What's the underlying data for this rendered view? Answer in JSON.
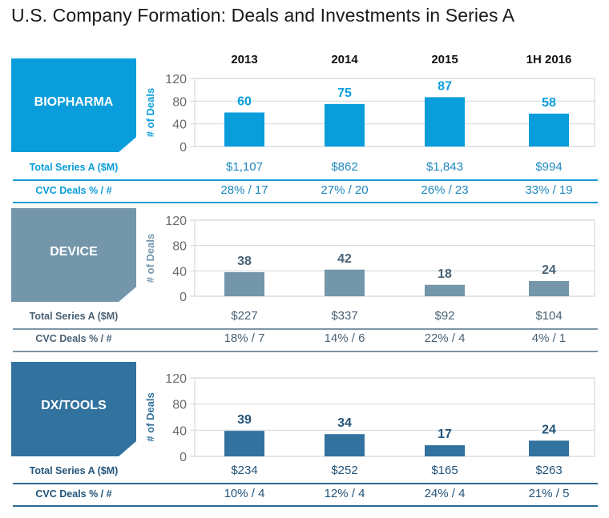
{
  "title": "U.S. Company Formation: Deals and Investments in Series A",
  "years": [
    "2013",
    "2014",
    "2015",
    "1H 2016"
  ],
  "row_labels": {
    "total": "Total Series A ($M)",
    "cvc": "CVC Deals % / #"
  },
  "colors": {
    "biopharma": "#0a9ddb",
    "device": "#7496ab",
    "dx": "#31729e"
  },
  "chart_data": [
    {
      "type": "bar",
      "title": "BIOPHARMA",
      "ylabel": "# of Deals",
      "categories": [
        "2013",
        "2014",
        "2015",
        "1H 2016"
      ],
      "values": [
        60,
        75,
        87,
        58
      ],
      "ylim": [
        0,
        120
      ],
      "yticks": [
        0,
        40,
        80,
        120
      ],
      "grid": true,
      "total_series_a": [
        "$1,107",
        "$862",
        "$1,843",
        "$994"
      ],
      "cvc_deals": [
        "28% / 17",
        "27% / 20",
        "26% / 23",
        "33% / 19"
      ]
    },
    {
      "type": "bar",
      "title": "DEVICE",
      "ylabel": "# of Deals",
      "categories": [
        "2013",
        "2014",
        "2015",
        "1H 2016"
      ],
      "values": [
        38,
        42,
        18,
        24
      ],
      "ylim": [
        0,
        120
      ],
      "yticks": [
        0,
        40,
        80,
        120
      ],
      "grid": true,
      "total_series_a": [
        "$227",
        "$337",
        "$92",
        "$104"
      ],
      "cvc_deals": [
        "18% / 7",
        "14% / 6",
        "22% / 4",
        "4% / 1"
      ]
    },
    {
      "type": "bar",
      "title": "DX/TOOLS",
      "ylabel": "# of Deals",
      "categories": [
        "2013",
        "2014",
        "2015",
        "1H 2016"
      ],
      "values": [
        39,
        34,
        17,
        24
      ],
      "ylim": [
        0,
        120
      ],
      "yticks": [
        0,
        40,
        80,
        120
      ],
      "grid": true,
      "total_series_a": [
        "$234",
        "$252",
        "$165",
        "$263"
      ],
      "cvc_deals": [
        "10% / 4",
        "12% / 4",
        "24% / 4",
        "21% / 5"
      ]
    }
  ]
}
